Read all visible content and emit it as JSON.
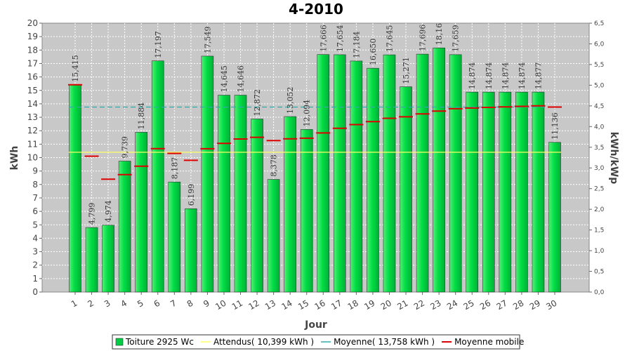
{
  "chart_data": {
    "type": "bar",
    "title": "4-2010",
    "xlabel": "Jour",
    "ylabel": "kWh",
    "y2label": "kWh/kWp",
    "ylim": [
      0,
      20
    ],
    "y2lim": [
      0,
      6.5
    ],
    "yticks": [
      "0",
      "1",
      "2",
      "3",
      "4",
      "5",
      "6",
      "7",
      "8",
      "9",
      "10",
      "11",
      "12",
      "13",
      "14",
      "15",
      "16",
      "17",
      "18",
      "19",
      "20"
    ],
    "y2ticks": [
      "0,0",
      "0,5",
      "1,0",
      "1,5",
      "2,0",
      "2,5",
      "3,0",
      "3,5",
      "4,0",
      "4,5",
      "5,0",
      "5,5",
      "6,0",
      "6,5"
    ],
    "categories": [
      "1",
      "2",
      "3",
      "4",
      "5",
      "6",
      "7",
      "8",
      "9",
      "10",
      "11",
      "12",
      "13",
      "14",
      "15",
      "16",
      "17",
      "18",
      "19",
      "20",
      "21",
      "22",
      "23",
      "24",
      "25",
      "26",
      "27",
      "28",
      "29",
      "30"
    ],
    "series": [
      {
        "name": "Toiture 2925 Wc",
        "kind": "bar",
        "color": "#00cc44",
        "values": [
          15.415,
          4.799,
          4.974,
          9.739,
          11.884,
          17.197,
          8.187,
          6.199,
          17.549,
          14.645,
          14.646,
          12.872,
          8.378,
          13.052,
          12.094,
          17.666,
          17.654,
          17.184,
          16.65,
          17.645,
          15.271,
          17.696,
          18.16,
          17.659,
          14.874,
          14.874,
          14.874,
          14.874,
          14.877,
          11.136
        ],
        "labels": [
          "15,415",
          "4,799",
          "4,974",
          "9,739",
          "11,884",
          "17,197",
          "8,187",
          "6,199",
          "17,549",
          "14,645",
          "14,646",
          "12,872",
          "8,378",
          "13,052",
          "12,094",
          "17,666",
          "17,654",
          "17,184",
          "16,650",
          "17,645",
          "15,271",
          "17,696",
          "18,16",
          "17,659",
          "14,874",
          "14,874",
          "14,874",
          "14,874",
          "14,877",
          "11,136"
        ]
      },
      {
        "name": "Attendus( 10,399 kWh )",
        "kind": "hline",
        "color": "#ffff66",
        "value": 10.399
      },
      {
        "name": "Moyenne( 13,758 kWh )",
        "kind": "hline",
        "color": "#33aaaa",
        "value": 13.758
      },
      {
        "name": "Moyenne mobile",
        "kind": "marker",
        "color": "#dd0000",
        "values": [
          15.415,
          10.107,
          8.396,
          8.732,
          9.362,
          10.668,
          10.314,
          9.8,
          10.661,
          11.059,
          11.385,
          11.51,
          11.269,
          11.396,
          11.443,
          11.832,
          12.178,
          12.457,
          12.678,
          12.926,
          13.037,
          13.249,
          13.462,
          13.637,
          13.686,
          13.731,
          13.773,
          13.812,
          13.848,
          13.758
        ]
      }
    ],
    "grid": true,
    "legend_position": "bottom"
  }
}
